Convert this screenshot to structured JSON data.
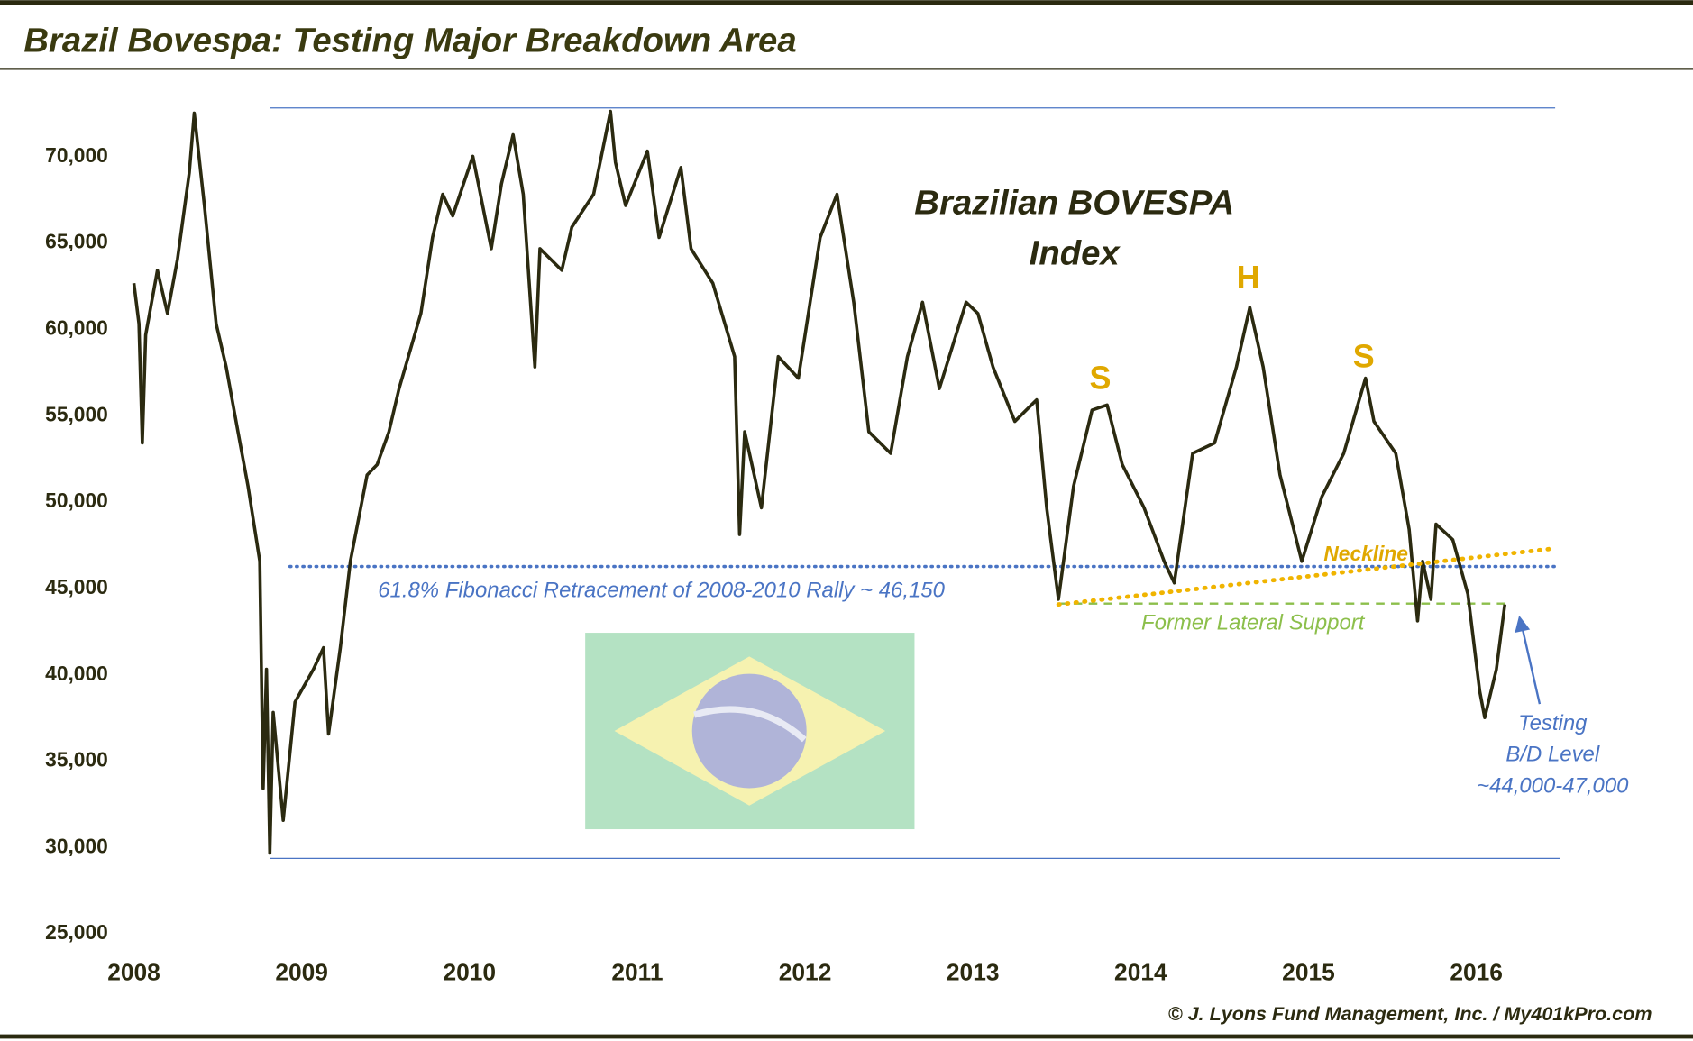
{
  "chart_data": {
    "type": "line",
    "title": "Brazil Bovespa: Testing Major Breakdown Area",
    "chart_label": [
      "Brazilian BOVESPA",
      "Index"
    ],
    "pattern_labels": [
      "S",
      "H",
      "S"
    ],
    "neckline_label": "Neckline",
    "fib_label": "61.8% Fibonacci Retracement of 2008-2010 Rally ~ 46,150",
    "support_label": "Former Lateral Support",
    "callout": [
      "Testing",
      "B/D Level",
      "~44,000-47,000"
    ],
    "source": "© J. Lyons Fund Management, Inc. / My401kPro.com",
    "xlim": [
      2008,
      2016.5
    ],
    "xticks": [
      2008,
      2009,
      2010,
      2011,
      2012,
      2013,
      2014,
      2015,
      2016
    ],
    "ylim": [
      25000,
      73000
    ],
    "yticks": [
      {
        "value": 25000,
        "label": "25,000"
      },
      {
        "value": 30000,
        "label": "30,000"
      },
      {
        "value": 35000,
        "label": "35,000"
      },
      {
        "value": 40000,
        "label": "40,000"
      },
      {
        "value": 45000,
        "label": "45,000"
      },
      {
        "value": 50000,
        "label": "50,000"
      },
      {
        "value": 55000,
        "label": "55,000"
      },
      {
        "value": 60000,
        "label": "60,000"
      },
      {
        "value": 65000,
        "label": "65,000"
      },
      {
        "value": 70000,
        "label": "70,000"
      }
    ],
    "x": [
      2008.0,
      2008.03,
      2008.05,
      2008.07,
      2008.14,
      2008.2,
      2008.26,
      2008.33,
      2008.36,
      2008.42,
      2008.49,
      2008.55,
      2008.62,
      2008.68,
      2008.75,
      2008.77,
      2008.79,
      2008.81,
      2008.83,
      2008.89,
      2008.96,
      2009.07,
      2009.13,
      2009.16,
      2009.23,
      2009.29,
      2009.39,
      2009.45,
      2009.52,
      2009.58,
      2009.71,
      2009.78,
      2009.84,
      2009.9,
      2010.02,
      2010.13,
      2010.19,
      2010.26,
      2010.32,
      2010.39,
      2010.42,
      2010.55,
      2010.61,
      2010.74,
      2010.84,
      2010.87,
      2010.93,
      2011.06,
      2011.13,
      2011.26,
      2011.32,
      2011.45,
      2011.58,
      2011.61,
      2011.64,
      2011.74,
      2011.84,
      2011.96,
      2012.09,
      2012.19,
      2012.29,
      2012.38,
      2012.51,
      2012.61,
      2012.7,
      2012.8,
      2012.96,
      2013.03,
      2013.12,
      2013.25,
      2013.38,
      2013.44,
      2013.51,
      2013.6,
      2013.71,
      2013.8,
      2013.89,
      2014.02,
      2014.14,
      2014.2,
      2014.31,
      2014.44,
      2014.57,
      2014.65,
      2014.73,
      2014.83,
      2014.96,
      2015.08,
      2015.21,
      2015.34,
      2015.39,
      2015.52,
      2015.6,
      2015.65,
      2015.68,
      2015.73,
      2015.76,
      2015.86,
      2015.95,
      2016.02,
      2016.05,
      2016.12,
      2016.17
    ],
    "series": [
      {
        "name": "Brazilian BOVESPA Index",
        "color": "#2b2a10",
        "values": [
          62550,
          60200,
          53300,
          59550,
          63300,
          60800,
          63950,
          68950,
          72400,
          67050,
          60200,
          57700,
          53950,
          50800,
          46450,
          33300,
          40200,
          29550,
          37700,
          31450,
          38300,
          40200,
          41450,
          36450,
          41450,
          46450,
          51450,
          52050,
          53950,
          56450,
          60800,
          65200,
          67700,
          66450,
          69900,
          64550,
          68300,
          71150,
          67700,
          57700,
          64550,
          63300,
          65800,
          67700,
          72500,
          69550,
          67050,
          70200,
          65200,
          69250,
          64550,
          62550,
          58300,
          48000,
          53950,
          49550,
          58300,
          57050,
          65200,
          67700,
          61450,
          53950,
          52700,
          58300,
          61450,
          56450,
          61450,
          60800,
          57700,
          54550,
          55800,
          49550,
          44250,
          50800,
          55200,
          55500,
          52050,
          49550,
          46450,
          45200,
          52700,
          53300,
          57700,
          61150,
          57700,
          51450,
          46450,
          50200,
          52700,
          57050,
          54550,
          52700,
          48300,
          43000,
          46450,
          44250,
          48600,
          47700,
          44550,
          38950,
          37400,
          40200,
          43950
        ]
      }
    ],
    "range_lines": [
      {
        "value": 72700,
        "x": [
          2008.81,
          2016.47
        ],
        "color": "#4a74c4"
      },
      {
        "value": 29250,
        "x": [
          2008.81,
          2016.5
        ],
        "color": "#4a74c4"
      }
    ],
    "fib_line": {
      "value": 46150,
      "x": [
        2008.93,
        2016.47
      ],
      "color": "#4a74c4"
    },
    "support_line": {
      "value": 44000,
      "x": [
        2013.51,
        2016.18
      ],
      "color": "#8cbf4b"
    },
    "neckline": {
      "x": [
        2013.51,
        2016.47
      ],
      "y": [
        43950,
        47200
      ],
      "color": "#f0b400"
    }
  }
}
